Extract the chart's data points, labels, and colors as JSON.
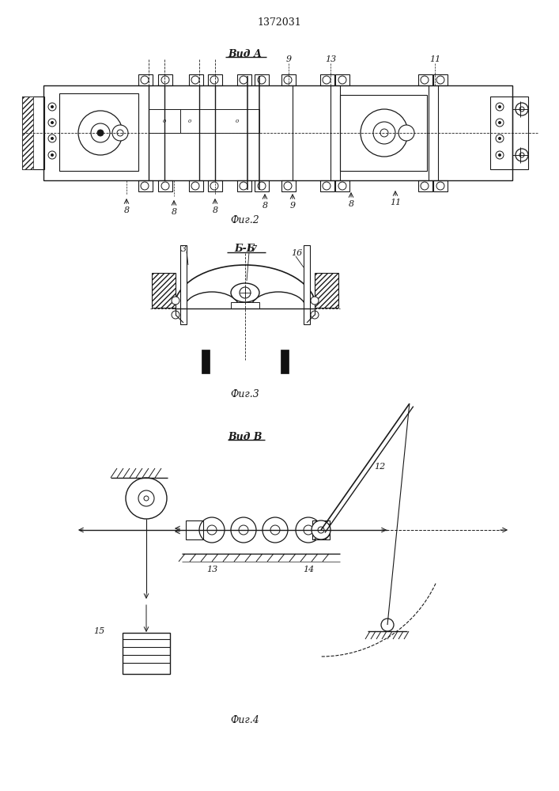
{
  "bg_color": "#ffffff",
  "line_color": "#1a1a1a",
  "patent_number": "1372031",
  "fig2_label": "Фиг.2",
  "fig3_label": "Фиг.3",
  "fig4_label": "Фиг.4",
  "view_a_label": "Вид А",
  "view_b_label": "Б-Б",
  "view_v_label": "Вид В"
}
